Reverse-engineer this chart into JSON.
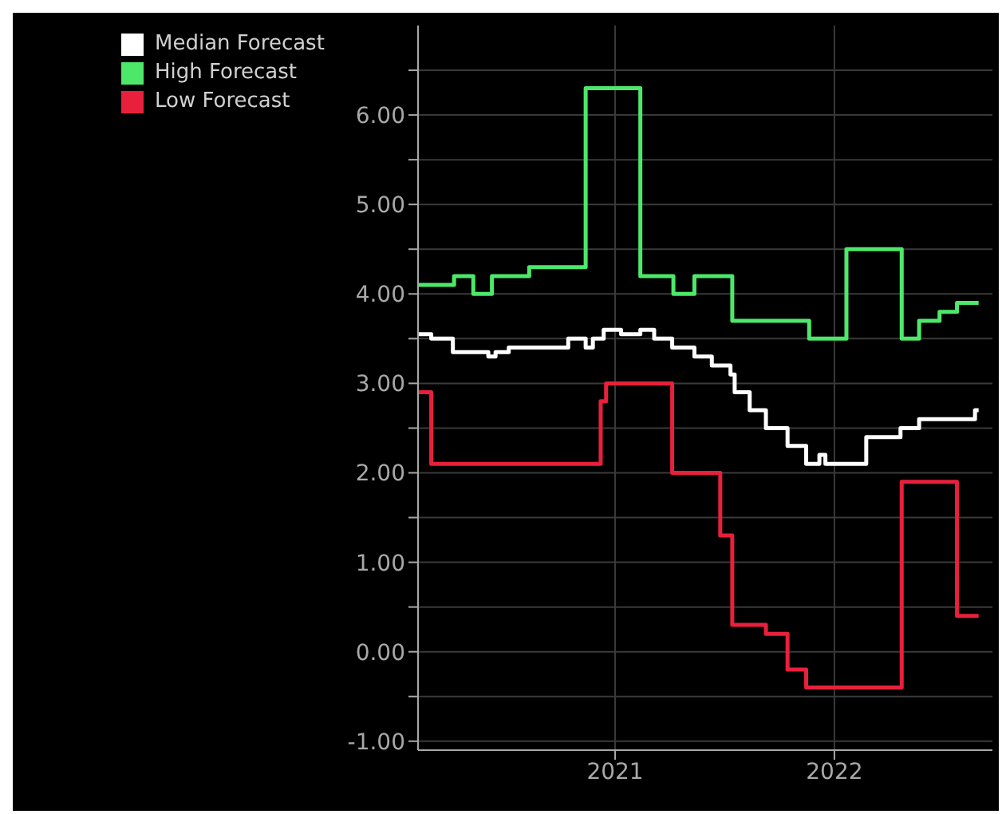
{
  "chart_data": {
    "type": "step",
    "xlim": [
      "2020-02-08",
      "2022-09-21"
    ],
    "xticks": [
      {
        "value": "2021",
        "label": "2021"
      },
      {
        "value": "2022",
        "label": "2022"
      }
    ],
    "ylim": [
      -1.1,
      7.0
    ],
    "yticks": [
      {
        "value": -1,
        "label": "-1.00"
      },
      {
        "value": -0.5,
        "label": null
      },
      {
        "value": 0,
        "label": "0.00"
      },
      {
        "value": 0.5,
        "label": null
      },
      {
        "value": 1,
        "label": "1.00"
      },
      {
        "value": 1.5,
        "label": null
      },
      {
        "value": 2,
        "label": "2.00"
      },
      {
        "value": 2.5,
        "label": null
      },
      {
        "value": 3,
        "label": "3.00"
      },
      {
        "value": 3.5,
        "label": null
      },
      {
        "value": 4,
        "label": "4.00"
      },
      {
        "value": 4.5,
        "label": null
      },
      {
        "value": 5,
        "label": "5.00"
      },
      {
        "value": 5.5,
        "label": null
      },
      {
        "value": 6,
        "label": "6.00"
      },
      {
        "value": 6.5,
        "label": null
      }
    ],
    "grid": true,
    "legend": "top left",
    "line_style": "solid",
    "series": [
      {
        "name": "Median Forecast",
        "color": "#ffffff",
        "x": [
          "2020-02-08",
          "2020-03-01",
          "2020-04-06",
          "2020-06-04",
          "2020-06-16",
          "2020-07-08",
          "2020-10-15",
          "2020-11-13",
          "2020-11-25",
          "2020-12-13",
          "2021-01-11",
          "2021-02-12",
          "2021-03-07",
          "2021-04-06",
          "2021-05-13",
          "2021-06-11",
          "2021-07-12",
          "2021-07-19",
          "2021-08-13",
          "2021-09-09",
          "2021-10-15",
          "2021-11-15",
          "2021-12-07",
          "2021-12-17",
          "2022-02-23",
          "2022-04-21",
          "2022-05-22",
          "2022-08-23",
          "2022-08-29"
        ],
        "values": [
          3.55,
          3.5,
          3.35,
          3.3,
          3.35,
          3.4,
          3.5,
          3.4,
          3.5,
          3.6,
          3.55,
          3.6,
          3.5,
          3.4,
          3.3,
          3.2,
          3.1,
          2.9,
          2.7,
          2.5,
          2.3,
          2.1,
          2.2,
          2.1,
          2.4,
          2.5,
          2.6,
          2.7,
          2.7
        ]
      },
      {
        "name": "High Forecast",
        "color": "#4de86a",
        "x": [
          "2020-02-08",
          "2020-04-08",
          "2020-05-10",
          "2020-06-10",
          "2020-08-11",
          "2020-11-13",
          "2021-02-12",
          "2021-04-08",
          "2021-05-13",
          "2021-07-15",
          "2021-11-20",
          "2022-01-21",
          "2022-04-23",
          "2022-05-22",
          "2022-06-25",
          "2022-07-24",
          "2022-08-29"
        ],
        "values": [
          4.1,
          4.2,
          4.0,
          4.2,
          4.3,
          6.3,
          4.2,
          4.0,
          4.2,
          3.7,
          3.5,
          4.5,
          3.5,
          3.7,
          3.8,
          3.9,
          3.9
        ]
      },
      {
        "name": "Low Forecast",
        "color": "#e8203c",
        "x": [
          "2020-02-08",
          "2020-03-01",
          "2020-12-08",
          "2020-12-17",
          "2021-04-06",
          "2021-06-25",
          "2021-07-15",
          "2021-09-09",
          "2021-10-15",
          "2021-11-15",
          "2022-04-23",
          "2022-07-24",
          "2022-08-29"
        ],
        "values": [
          2.9,
          2.1,
          2.8,
          3.0,
          2.0,
          1.3,
          0.3,
          0.2,
          -0.2,
          -0.4,
          1.9,
          0.4,
          0.4
        ]
      }
    ]
  }
}
